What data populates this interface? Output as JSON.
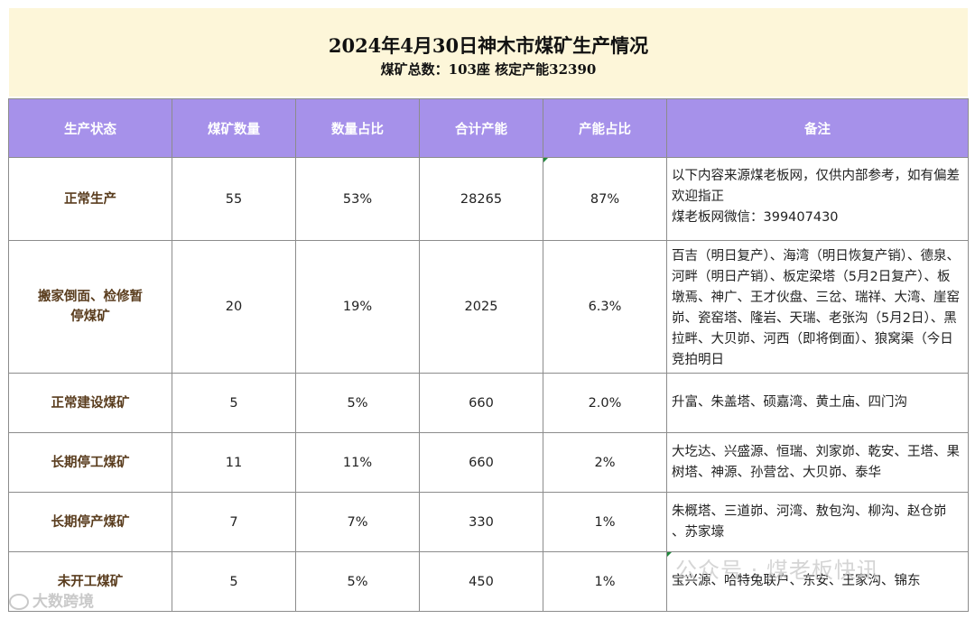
{
  "header": {
    "title": "2024年4月30日神木市煤矿生产情况",
    "subtitle": "煤矿总数：103座 核定产能32390"
  },
  "table": {
    "columns": [
      "生产状态",
      "煤矿数量",
      "数量占比",
      "合计产能",
      "产能占比",
      "备注"
    ],
    "rows": [
      {
        "status": "正常生产",
        "count": "55",
        "count_pct": "53%",
        "capacity": "28265",
        "capacity_pct": "87%",
        "note": "以下内容来源煤老板网，仅供内部参考，如有偏差欢迎指正\n煤老板网微信：399407430"
      },
      {
        "status": "搬家倒面、检修暂停煤矿",
        "count": "20",
        "count_pct": "19%",
        "capacity": "2025",
        "capacity_pct": "6.3%",
        "note": "百吉（明日复产）、海湾（明日恢复产销）、德泉、河畔（明日产销）、板定梁塔（5月2日复产）、板墩焉、神广、王才伙盘、三岔、瑞祥、大湾、崖窑峁、瓷窑塔、隆岩、天瑞、老张沟（5月2日）、黑拉畔、大贝峁、河西（即将倒面）、狼窝渠（今日竞拍明日"
      },
      {
        "status": "正常建设煤矿",
        "count": "5",
        "count_pct": "5%",
        "capacity": "660",
        "capacity_pct": "2.0%",
        "note": "升富、朱盖塔、硕嘉湾、黄土庙、四门沟"
      },
      {
        "status": "长期停工煤矿",
        "count": "11",
        "count_pct": "11%",
        "capacity": "660",
        "capacity_pct": "2%",
        "note": "大圪达、兴盛源、恒瑞、刘家峁、乾安、王塔、果树塔、神源、孙营岔、大贝峁、泰华"
      },
      {
        "status": "长期停产煤矿",
        "count": "7",
        "count_pct": "7%",
        "capacity": "330",
        "capacity_pct": "1%",
        "note": "朱概塔、三道峁、河湾、敖包沟、柳沟、赵仓峁 、苏家壕"
      },
      {
        "status": "未开工煤矿",
        "count": "5",
        "count_pct": "5%",
        "capacity": "450",
        "capacity_pct": "1%",
        "note": "宝兴源、哈特兔联户、东安、王家沟、锦东"
      }
    ]
  },
  "watermarks": {
    "left": "大数跨境",
    "right": "公众号 · 煤老板快讯"
  },
  "colors": {
    "header_bg": "#fdf6d9",
    "column_header_bg": "#a691ea",
    "status_text": "#5a3d1e"
  }
}
